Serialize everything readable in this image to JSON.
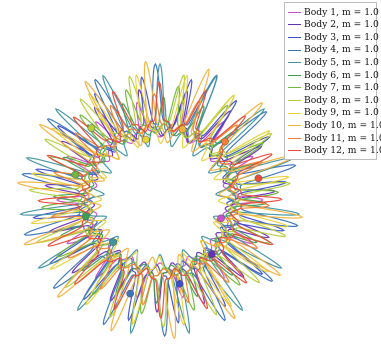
{
  "chart_data": {
    "type": "line",
    "title": "",
    "xlabel": "",
    "ylabel": "",
    "grid": false,
    "legend_position": "top-right",
    "series": [
      {
        "name": "Body 1, m = 1.0",
        "color": "#c84fd0"
      },
      {
        "name": "Body 2, m = 1.0",
        "color": "#6a2fb8"
      },
      {
        "name": "Body 3, m = 1.0",
        "color": "#3f4fc8"
      },
      {
        "name": "Body 4, m = 1.0",
        "color": "#3b74b8"
      },
      {
        "name": "Body 5, m = 1.0",
        "color": "#3f94a0"
      },
      {
        "name": "Body 6, m = 1.0",
        "color": "#3f9e55"
      },
      {
        "name": "Body 7, m = 1.0",
        "color": "#6fb83a"
      },
      {
        "name": "Body 8, m = 1.0",
        "color": "#b4cf3a"
      },
      {
        "name": "Body 9, m = 1.0",
        "color": "#e8d23a"
      },
      {
        "name": "Body 10, m = 1.0",
        "color": "#f3b13a"
      },
      {
        "name": "Body 11, m = 1.0",
        "color": "#f27f35"
      },
      {
        "name": "Body 12, m = 1.0",
        "color": "#e94a3a"
      }
    ]
  }
}
